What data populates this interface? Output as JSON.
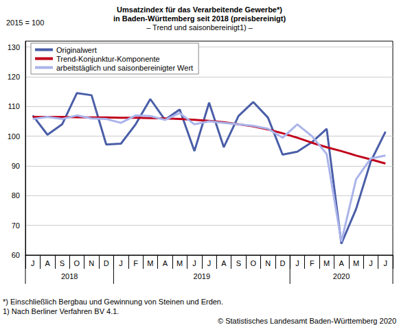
{
  "chart_data": {
    "type": "line",
    "title": "Umsatzindex für das Verarbeitende Gewerbe*)\nin Baden-Württemberg seit 2018 (preisbereinigt)",
    "subtitle": "– Trend und saisonbereinigt1) –",
    "y_unit_label": "2015 = 100",
    "categories": [
      "J",
      "A",
      "S",
      "O",
      "N",
      "D",
      "J",
      "F",
      "M",
      "A",
      "M",
      "J",
      "J",
      "A",
      "S",
      "O",
      "N",
      "D",
      "J",
      "F",
      "M",
      "A",
      "M",
      "J",
      "J"
    ],
    "x_groups": [
      {
        "label": "2018",
        "count": 6
      },
      {
        "label": "2019",
        "count": 12
      },
      {
        "label": "2020",
        "count": 7
      }
    ],
    "series": [
      {
        "name": "Originalwert",
        "color": "#4a5ea8",
        "values": [
          107,
          100.5,
          104,
          114.5,
          113.8,
          97.2,
          97.5,
          104,
          112.5,
          105.5,
          109,
          95,
          111.3,
          96.3,
          106.8,
          111.5,
          106.3,
          93.8,
          94.8,
          98,
          102.5,
          63.8,
          75.5,
          91.5,
          101.5
        ]
      },
      {
        "name": "Trend-Konjunktur-Komponente",
        "color": "#c0001a",
        "values": [
          106.5,
          106.5,
          106.5,
          106.4,
          106.3,
          106.3,
          106.2,
          106.2,
          106.1,
          106,
          105.8,
          105.5,
          105.2,
          104.7,
          104,
          103.3,
          102.3,
          101,
          99.5,
          97.8,
          96.3,
          95,
          93.5,
          92.2,
          90.8
        ]
      },
      {
        "name": "arbeitstäglich und saisonbereinigter Wert",
        "color": "#aab4ea",
        "values": [
          105.8,
          106.5,
          105.8,
          107,
          106,
          105.8,
          104.5,
          107,
          106.8,
          105.5,
          107.8,
          104,
          105,
          104.5,
          104,
          103.5,
          102.5,
          99.5,
          104,
          100,
          94,
          64.5,
          85.5,
          92.5,
          93.5
        ]
      }
    ],
    "ylim": [
      60,
      132
    ],
    "yticks": [
      60,
      70,
      80,
      90,
      100,
      110,
      120,
      130
    ],
    "grid": true,
    "legend": "upper left",
    "marker": "none",
    "notes": [
      "*) Einschließlich Bergbau und Gewinnung von Steinen und Erden.",
      "1) Nach Berliner Verfahren BV 4.1."
    ],
    "source": "© Statistisches Landesamt Baden-Württemberg 2020"
  }
}
